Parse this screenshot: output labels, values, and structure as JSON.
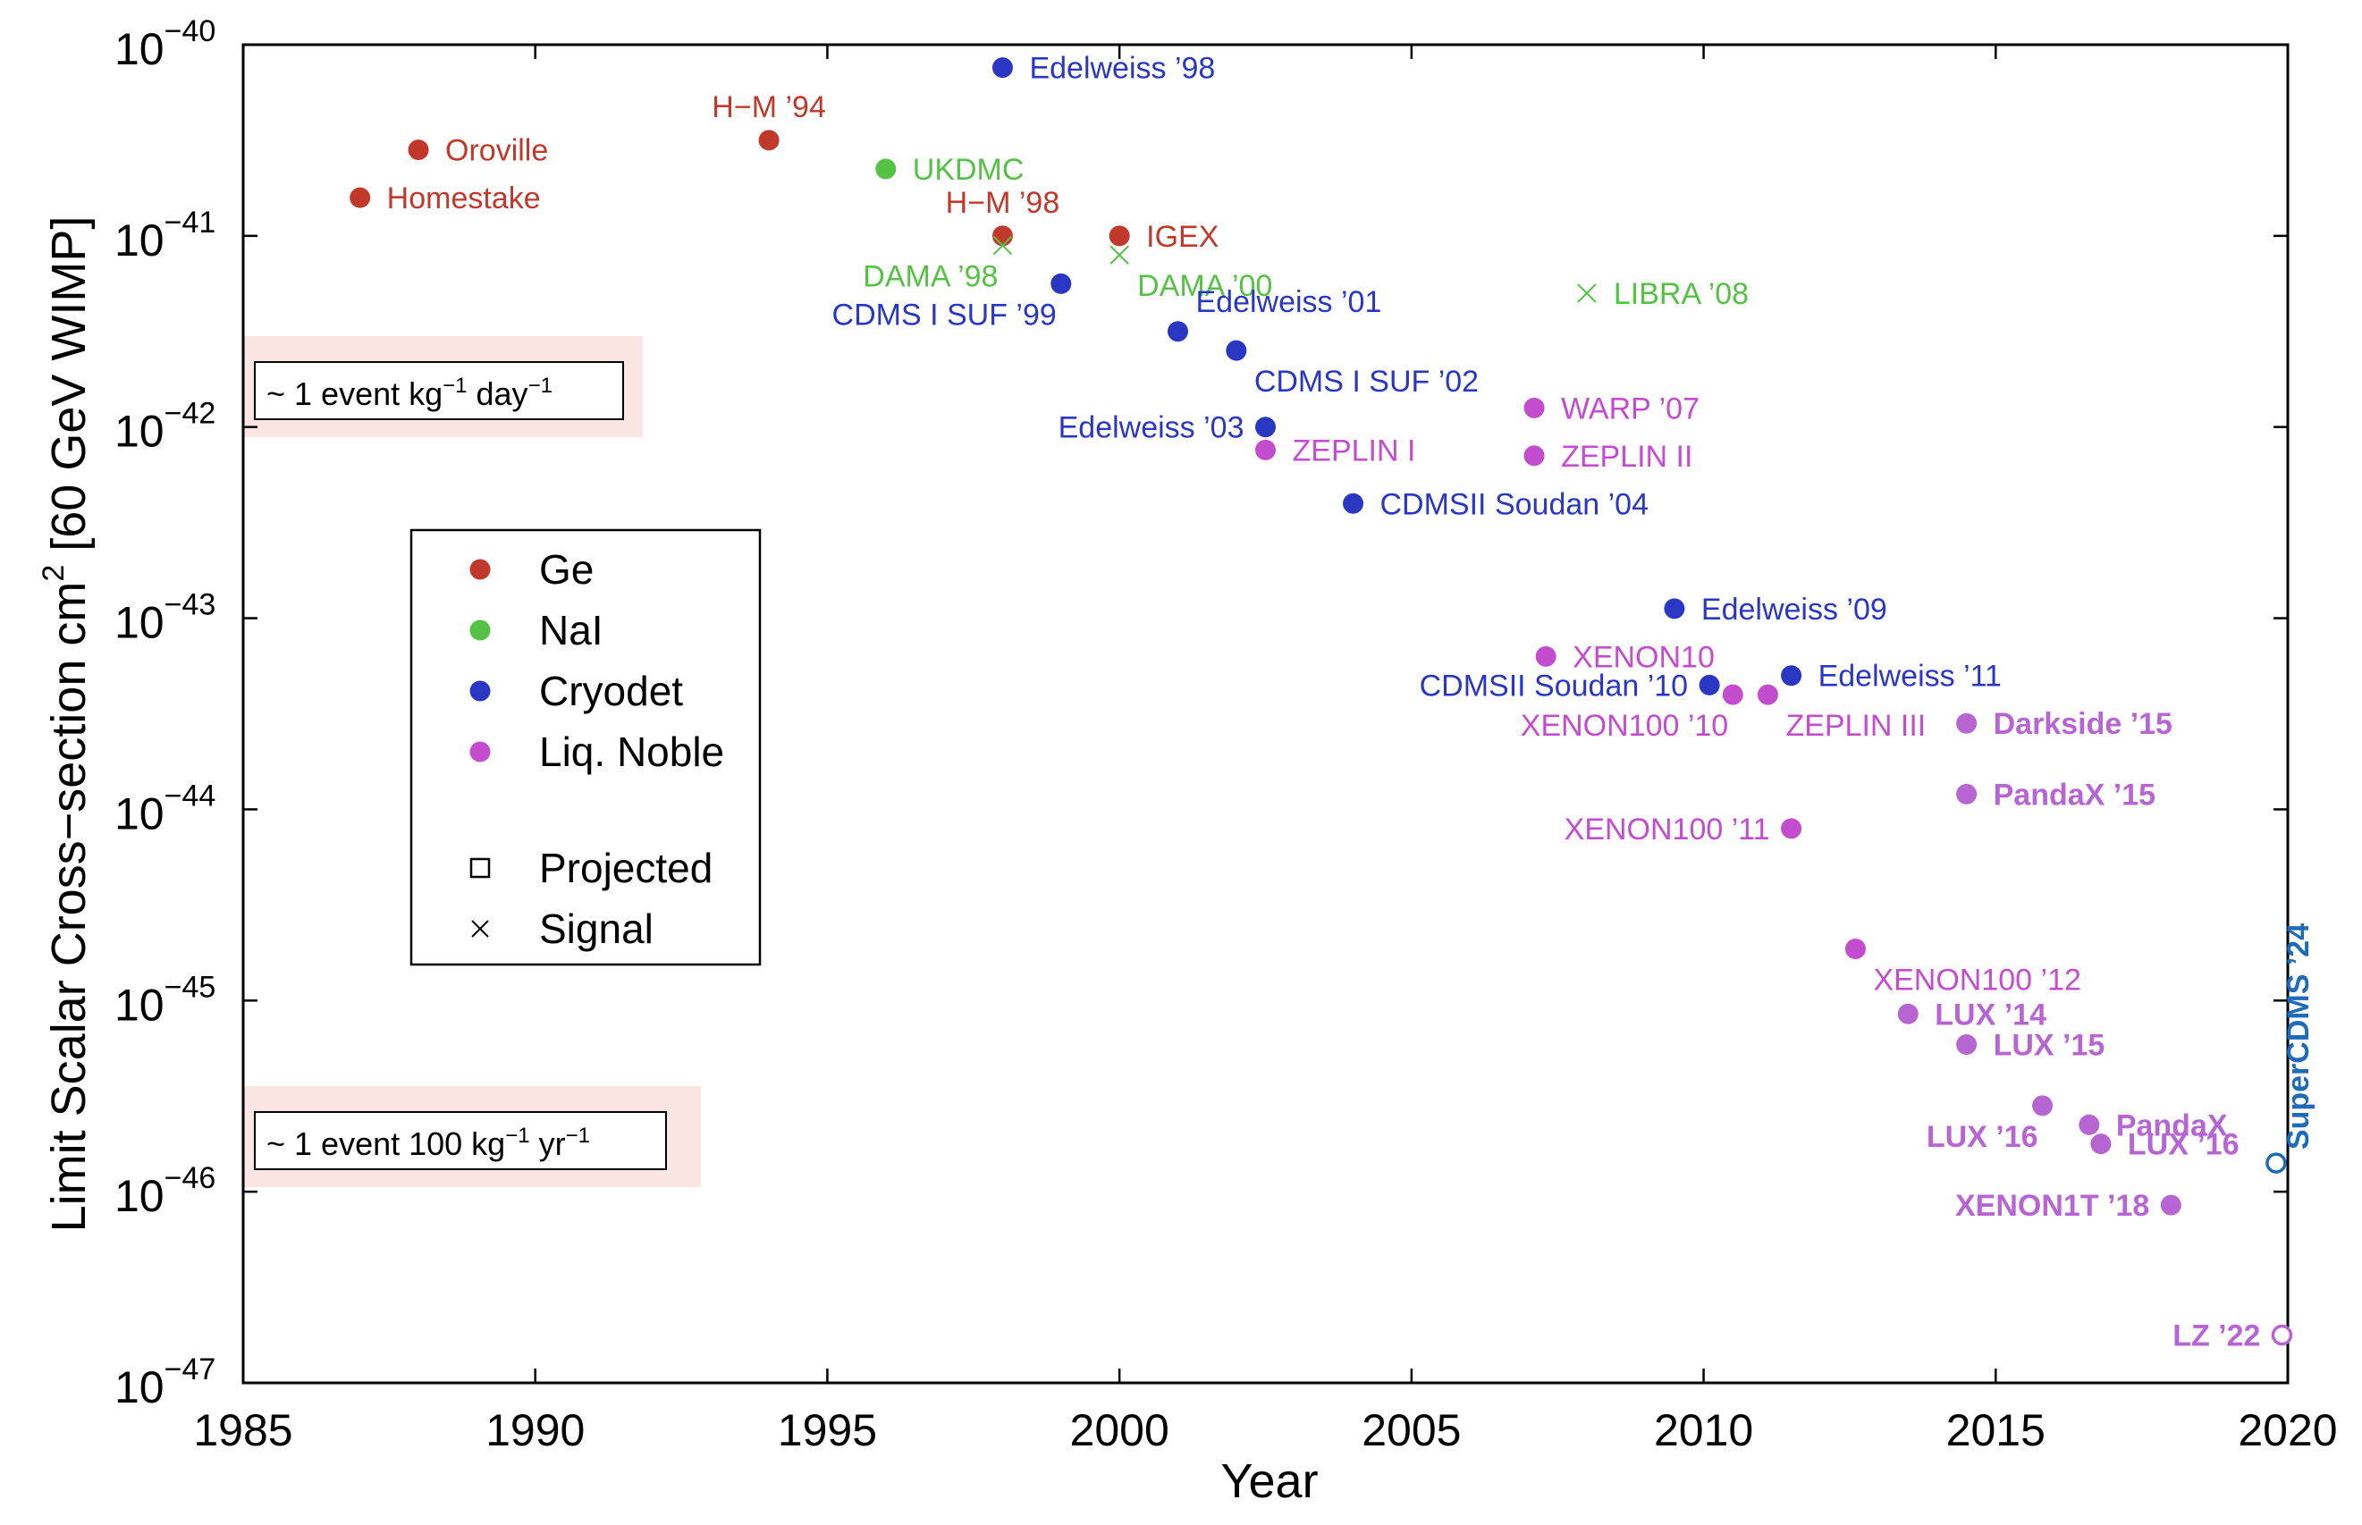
{
  "chart_data": {
    "type": "scatter",
    "xlabel": "Year",
    "ylabel": "Limit Scalar Cross−section cm",
    "ylabel_sup": "2",
    "ylabel_tail": " [60 GeV WIMP]",
    "xlim": [
      1985,
      2020
    ],
    "ylim_log10": [
      -47,
      -40
    ],
    "xticks": [
      1985,
      1990,
      1995,
      2000,
      2005,
      2010,
      2015,
      2020
    ],
    "yticks": [
      {
        "base": "10",
        "exp": "−40",
        "value": -40
      },
      {
        "base": "10",
        "exp": "−41",
        "value": -41
      },
      {
        "base": "10",
        "exp": "−42",
        "value": -42
      },
      {
        "base": "10",
        "exp": "−43",
        "value": -43
      },
      {
        "base": "10",
        "exp": "−44",
        "value": -44
      },
      {
        "base": "10",
        "exp": "−45",
        "value": -45
      },
      {
        "base": "10",
        "exp": "−46",
        "value": -46
      },
      {
        "base": "10",
        "exp": "−47",
        "value": -47
      }
    ],
    "colors": {
      "Ge": "#c0392b",
      "NaI": "#55c246",
      "Cryodet": "#2a37c2",
      "LiqNoble": "#c44ccf",
      "LiqNobleRecent": "#b865d4",
      "SuperCDMS": "#1f6bb8"
    },
    "legend": {
      "position": "middle-left",
      "materials": [
        {
          "label": "Ge",
          "color": "#c0392b"
        },
        {
          "label": "NaI",
          "color": "#55c246"
        },
        {
          "label": "Cryodet",
          "color": "#2a37c2"
        },
        {
          "label": "Liq. Noble",
          "color": "#c44ccf"
        }
      ],
      "markers": [
        {
          "label": "Projected",
          "symbol": "square"
        },
        {
          "label": "Signal",
          "symbol": "x"
        }
      ]
    },
    "bands": [
      {
        "log10": -41.75,
        "parts": [
          "~ 1 event kg",
          "−1",
          " day",
          "−1"
        ]
      },
      {
        "log10": -45.75,
        "parts": [
          "~ 1 event 100 kg",
          "−1",
          " yr",
          "−1"
        ]
      }
    ],
    "points": [
      {
        "label": "Oroville",
        "year": 1988.0,
        "log10": -40.55,
        "material": "Ge",
        "kind": "limit",
        "anchor": "right",
        "bold": false
      },
      {
        "label": "Homestake",
        "year": 1987.0,
        "log10": -40.8,
        "material": "Ge",
        "kind": "limit",
        "anchor": "right",
        "bold": false
      },
      {
        "label": "H−M ’94",
        "year": 1994.0,
        "log10": -40.5,
        "material": "Ge",
        "kind": "limit",
        "anchor": "above",
        "bold": false
      },
      {
        "label": "H−M ’98",
        "year": 1998.0,
        "log10": -41.0,
        "material": "Ge",
        "kind": "limit",
        "anchor": "above",
        "bold": false
      },
      {
        "label": "IGEX",
        "year": 2000.0,
        "log10": -41.0,
        "material": "Ge",
        "kind": "limit",
        "anchor": "right",
        "bold": false
      },
      {
        "label": "UKDMC",
        "year": 1996.0,
        "log10": -40.65,
        "material": "NaI",
        "kind": "limit",
        "anchor": "right",
        "bold": false
      },
      {
        "label": "DAMA ’98",
        "year": 1998.0,
        "log10": -41.05,
        "material": "NaI",
        "kind": "signal",
        "anchor": "below-left",
        "bold": false
      },
      {
        "label": "DAMA ’00",
        "year": 2000.0,
        "log10": -41.1,
        "material": "NaI",
        "kind": "signal",
        "anchor": "below-right",
        "bold": false
      },
      {
        "label": "LIBRA ’08",
        "year": 2008.0,
        "log10": -41.3,
        "material": "NaI",
        "kind": "signal",
        "anchor": "right",
        "bold": false
      },
      {
        "label": "Edelweiss ’98",
        "year": 1998.0,
        "log10": -40.12,
        "material": "Cryodet",
        "kind": "limit",
        "anchor": "right",
        "bold": false
      },
      {
        "label": "CDMS I SUF ’99",
        "year": 1999.0,
        "log10": -41.25,
        "material": "Cryodet",
        "kind": "limit",
        "anchor": "below-left",
        "bold": false
      },
      {
        "label": "Edelweiss ’01",
        "year": 2001.0,
        "log10": -41.5,
        "material": "Cryodet",
        "kind": "limit",
        "anchor": "above-right",
        "bold": false
      },
      {
        "label": "CDMS I SUF ’02",
        "year": 2002.0,
        "log10": -41.6,
        "material": "Cryodet",
        "kind": "limit",
        "anchor": "below-right",
        "bold": false
      },
      {
        "label": "Edelweiss ’03",
        "year": 2002.5,
        "log10": -42.0,
        "material": "Cryodet",
        "kind": "limit",
        "anchor": "left",
        "bold": false
      },
      {
        "label": "CDMSII Soudan ’04",
        "year": 2004.0,
        "log10": -42.4,
        "material": "Cryodet",
        "kind": "limit",
        "anchor": "right",
        "bold": false
      },
      {
        "label": "Edelweiss ’09",
        "year": 2009.5,
        "log10": -42.95,
        "material": "Cryodet",
        "kind": "limit",
        "anchor": "right",
        "bold": false
      },
      {
        "label": "CDMSII Soudan ’10",
        "year": 2010.1,
        "log10": -43.35,
        "material": "Cryodet",
        "kind": "limit",
        "anchor": "left",
        "bold": false
      },
      {
        "label": "Edelweiss ’11",
        "year": 2011.5,
        "log10": -43.3,
        "material": "Cryodet",
        "kind": "limit",
        "anchor": "right",
        "bold": false
      },
      {
        "label": "ZEPLIN I",
        "year": 2002.5,
        "log10": -42.12,
        "material": "LiqNoble",
        "kind": "limit",
        "anchor": "right",
        "bold": false
      },
      {
        "label": "WARP ’07",
        "year": 2007.1,
        "log10": -41.9,
        "material": "LiqNoble",
        "kind": "limit",
        "anchor": "right",
        "bold": false
      },
      {
        "label": "ZEPLIN II",
        "year": 2007.1,
        "log10": -42.15,
        "material": "LiqNoble",
        "kind": "limit",
        "anchor": "right",
        "bold": false
      },
      {
        "label": "XENON10",
        "year": 2007.3,
        "log10": -43.2,
        "material": "LiqNoble",
        "kind": "limit",
        "anchor": "right",
        "bold": false
      },
      {
        "label": "XENON100 ’10",
        "year": 2010.5,
        "log10": -43.4,
        "material": "LiqNoble",
        "kind": "limit",
        "anchor": "below-left",
        "bold": false
      },
      {
        "label": "ZEPLIN III",
        "year": 2011.1,
        "log10": -43.4,
        "material": "LiqNoble",
        "kind": "limit",
        "anchor": "below-right",
        "bold": false
      },
      {
        "label": "XENON100 ’11",
        "year": 2011.5,
        "log10": -44.1,
        "material": "LiqNoble",
        "kind": "limit",
        "anchor": "left",
        "bold": false
      },
      {
        "label": "Darkside ’15",
        "year": 2014.5,
        "log10": -43.55,
        "material": "LiqNobleRecent",
        "kind": "limit",
        "anchor": "right",
        "bold": true
      },
      {
        "label": "PandaX ’15",
        "year": 2014.5,
        "log10": -43.92,
        "material": "LiqNobleRecent",
        "kind": "limit",
        "anchor": "right",
        "bold": true
      },
      {
        "label": "XENON100 ’12",
        "year": 2012.6,
        "log10": -44.73,
        "material": "LiqNoble",
        "kind": "limit",
        "anchor": "below-right",
        "bold": false
      },
      {
        "label": "LUX ’14",
        "year": 2013.5,
        "log10": -45.07,
        "material": "LiqNobleRecent",
        "kind": "limit",
        "anchor": "right",
        "bold": true
      },
      {
        "label": "LUX ’15",
        "year": 2014.5,
        "log10": -45.23,
        "material": "LiqNobleRecent",
        "kind": "limit",
        "anchor": "right",
        "bold": true
      },
      {
        "label": "LUX ’16",
        "year": 2015.8,
        "log10": -45.55,
        "material": "LiqNobleRecent",
        "kind": "limit",
        "anchor": "below-left",
        "bold": true
      },
      {
        "label": "PandaX",
        "year": 2016.6,
        "log10": -45.65,
        "material": "LiqNobleRecent",
        "kind": "limit",
        "anchor": "right",
        "bold": true
      },
      {
        "label": "LUX ’16",
        "year": 2016.8,
        "log10": -45.75,
        "material": "LiqNobleRecent",
        "kind": "limit",
        "anchor": "right",
        "bold": true
      },
      {
        "label": "XENON1T ’18",
        "year": 2018.0,
        "log10": -46.07,
        "material": "LiqNobleRecent",
        "kind": "limit",
        "anchor": "left",
        "bold": true
      },
      {
        "label": "LZ ’22",
        "year": 2019.9,
        "log10": -46.75,
        "material": "LiqNobleRecent",
        "kind": "projected",
        "anchor": "left",
        "bold": true
      },
      {
        "label": "SuperCDMS ’24",
        "year": 2019.8,
        "log10": -45.85,
        "material": "SuperCDMS",
        "kind": "projected",
        "anchor": "vertical",
        "bold": true
      }
    ]
  }
}
